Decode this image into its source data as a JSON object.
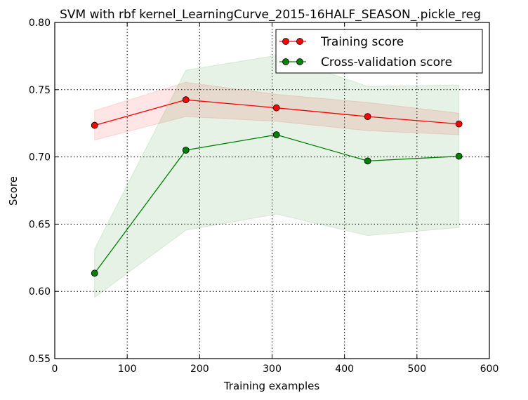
{
  "chart_data": {
    "type": "line",
    "title": "SVM with rbf kernel_LearningCurve_2015-16HALF_SEASON_.pickle_reg",
    "xlabel": "Training examples",
    "ylabel": "Score",
    "xlim": [
      0,
      600
    ],
    "ylim": [
      0.55,
      0.8
    ],
    "xticks": [
      0,
      100,
      200,
      300,
      400,
      500,
      600
    ],
    "yticks": [
      0.55,
      0.6,
      0.65,
      0.7,
      0.75,
      0.8
    ],
    "xtick_labels": [
      "0",
      "100",
      "200",
      "300",
      "400",
      "500",
      "600"
    ],
    "ytick_labels": [
      "0.55",
      "0.60",
      "0.65",
      "0.70",
      "0.75",
      "0.80"
    ],
    "grid": true,
    "legend_position": "top-right",
    "x": [
      55,
      181,
      306,
      432,
      558
    ],
    "series": [
      {
        "name": "Training score",
        "color": "#ff0000",
        "fill_color": "#ff0000",
        "values": [
          0.7235,
          0.7425,
          0.7365,
          0.73,
          0.7245
        ],
        "band_upper": [
          0.7345,
          0.7555,
          0.7465,
          0.7405,
          0.7325
        ],
        "band_lower": [
          0.7125,
          0.73,
          0.7265,
          0.7195,
          0.7165
        ]
      },
      {
        "name": "Cross-validation score",
        "color": "#008000",
        "fill_color": "#008000",
        "values": [
          0.6135,
          0.705,
          0.7165,
          0.697,
          0.7005
        ],
        "band_upper": [
          0.6315,
          0.7645,
          0.7755,
          0.7525,
          0.7535
        ],
        "band_lower": [
          0.5955,
          0.6455,
          0.6575,
          0.6415,
          0.6475
        ]
      }
    ]
  }
}
